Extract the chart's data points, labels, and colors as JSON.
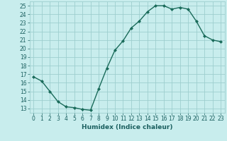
{
  "x": [
    0,
    1,
    2,
    3,
    4,
    5,
    6,
    7,
    8,
    9,
    10,
    11,
    12,
    13,
    14,
    15,
    16,
    17,
    18,
    19,
    20,
    21,
    22,
    23
  ],
  "y": [
    16.7,
    16.2,
    15.0,
    13.8,
    13.2,
    13.1,
    12.9,
    12.8,
    15.3,
    17.7,
    19.8,
    20.9,
    22.4,
    23.2,
    24.3,
    25.0,
    25.0,
    24.6,
    24.8,
    24.6,
    23.2,
    21.5,
    21.0,
    20.8
  ],
  "line_color": "#1a6b5a",
  "marker": "D",
  "markersize": 2.0,
  "bg_color": "#c8eded",
  "grid_color": "#9ecece",
  "xlabel": "Humidex (Indice chaleur)",
  "xlim": [
    -0.5,
    23.5
  ],
  "ylim": [
    12.5,
    25.5
  ],
  "yticks": [
    13,
    14,
    15,
    16,
    17,
    18,
    19,
    20,
    21,
    22,
    23,
    24,
    25
  ],
  "xticks": [
    0,
    1,
    2,
    3,
    4,
    5,
    6,
    7,
    8,
    9,
    10,
    11,
    12,
    13,
    14,
    15,
    16,
    17,
    18,
    19,
    20,
    21,
    22,
    23
  ],
  "tick_fontsize": 5.5,
  "xlabel_fontsize": 6.5,
  "linewidth": 1.0,
  "tick_color": "#1a5f5f",
  "label_color": "#1a5f5f"
}
